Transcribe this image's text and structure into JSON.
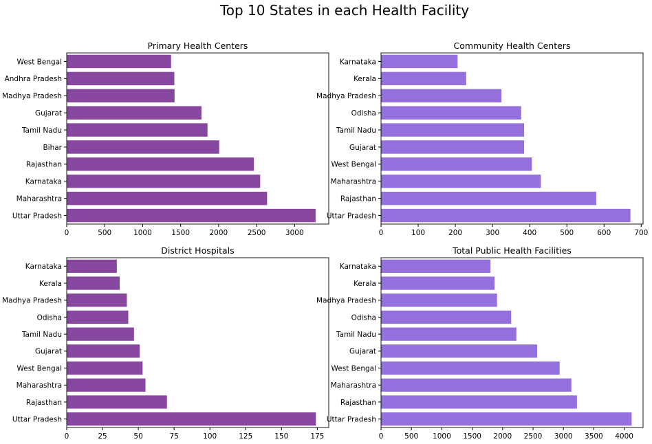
{
  "figure": {
    "title": "Top 10 States in each Health Facility"
  },
  "chart_data": [
    {
      "type": "bar",
      "orientation": "horizontal",
      "title": "Primary Health Centers",
      "color": "#88479e",
      "categories": [
        "Uttar Pradesh",
        "Maharashtra",
        "Karnataka",
        "Rajasthan",
        "Bihar",
        "Tamil Nadu",
        "Gujarat",
        "Madhya Pradesh",
        "Andhra Pradesh",
        "West Bengal"
      ],
      "values": [
        3277,
        2638,
        2547,
        2463,
        2007,
        1854,
        1774,
        1420,
        1417,
        1374
      ],
      "xlim": [
        0,
        3450
      ],
      "xticks": [
        0,
        500,
        1000,
        1500,
        2000,
        2500,
        3000
      ],
      "xlabel": "",
      "ylabel": ""
    },
    {
      "type": "bar",
      "orientation": "horizontal",
      "title": "Community Health Centers",
      "color": "#9370db",
      "categories": [
        "Uttar Pradesh",
        "Rajasthan",
        "Maharashtra",
        "West Bengal",
        "Gujarat",
        "Tamil Nadu",
        "Odisha",
        "Madhya Pradesh",
        "Kerala",
        "Karnataka"
      ],
      "values": [
        671,
        579,
        430,
        406,
        385,
        385,
        377,
        324,
        229,
        206
      ],
      "xlim": [
        0,
        705
      ],
      "xticks": [
        0,
        100,
        200,
        300,
        400,
        500,
        600,
        700
      ],
      "xlabel": "",
      "ylabel": ""
    },
    {
      "type": "bar",
      "orientation": "horizontal",
      "title": "District Hospitals",
      "color": "#88479e",
      "categories": [
        "Uttar Pradesh",
        "Rajasthan",
        "Maharashtra",
        "West Bengal",
        "Gujarat",
        "Tamil Nadu",
        "Odisha",
        "Madhya Pradesh",
        "Kerala",
        "Karnataka"
      ],
      "values": [
        174,
        70,
        55,
        53,
        51,
        47,
        43,
        42,
        37,
        35
      ],
      "xlim": [
        0,
        183
      ],
      "xticks": [
        0,
        25,
        50,
        75,
        100,
        125,
        150,
        175
      ],
      "xlabel": "",
      "ylabel": ""
    },
    {
      "type": "bar",
      "orientation": "horizontal",
      "title": "Total Public Health Facilities",
      "color": "#9370db",
      "categories": [
        "Uttar Pradesh",
        "Rajasthan",
        "Maharashtra",
        "West Bengal",
        "Gujarat",
        "Tamil Nadu",
        "Odisha",
        "Madhya Pradesh",
        "Kerala",
        "Karnataka"
      ],
      "values": [
        4122,
        3223,
        3131,
        2938,
        2568,
        2226,
        2141,
        1908,
        1867,
        1800
      ],
      "xlim": [
        0,
        4310
      ],
      "xticks": [
        0,
        500,
        1000,
        1500,
        2000,
        2500,
        3000,
        3500,
        4000
      ],
      "xlabel": "",
      "ylabel": ""
    }
  ]
}
